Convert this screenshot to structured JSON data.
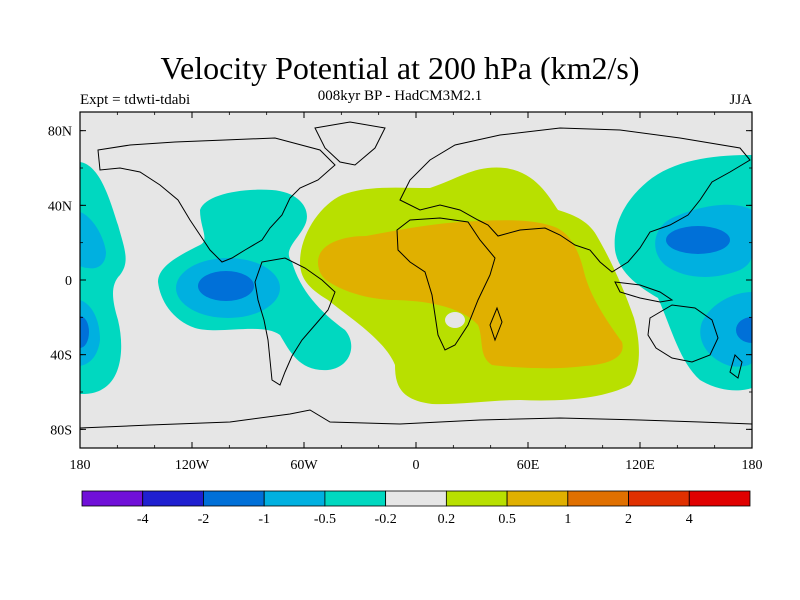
{
  "title": "Velocity Potential at 200 hPa (km2/s)",
  "subtitle": "008kyr BP - HadCM3M2.1",
  "experiment": "Expt = tdwti-tdabi",
  "season": "JJA",
  "map": {
    "lon_range": [
      -180,
      180
    ],
    "lat_range": [
      -90,
      90
    ],
    "x_ticks": [
      {
        "lon": -180,
        "label": "180"
      },
      {
        "lon": -120,
        "label": "120W"
      },
      {
        "lon": -60,
        "label": "60W"
      },
      {
        "lon": 0,
        "label": "0"
      },
      {
        "lon": 60,
        "label": "60E"
      },
      {
        "lon": 120,
        "label": "120E"
      },
      {
        "lon": 180,
        "label": "180"
      }
    ],
    "y_ticks": [
      {
        "lat": 80,
        "label": "80N"
      },
      {
        "lat": 40,
        "label": "40N"
      },
      {
        "lat": 0,
        "label": "0"
      },
      {
        "lat": -40,
        "label": "40S"
      },
      {
        "lat": -80,
        "label": "80S"
      }
    ],
    "background_color": "#e6e6e6"
  },
  "colorbar": {
    "colors": [
      "#7010d8",
      "#2020d0",
      "#0070d8",
      "#00b0e0",
      "#00d8c0",
      "#e6e6e6",
      "#b8e000",
      "#e0b000",
      "#e07000",
      "#e03000",
      "#e00000"
    ],
    "levels": [
      "-4",
      "-2",
      "-1",
      "-0.5",
      "-0.2",
      "0.2",
      "0.5",
      "1",
      "2",
      "4"
    ]
  }
}
